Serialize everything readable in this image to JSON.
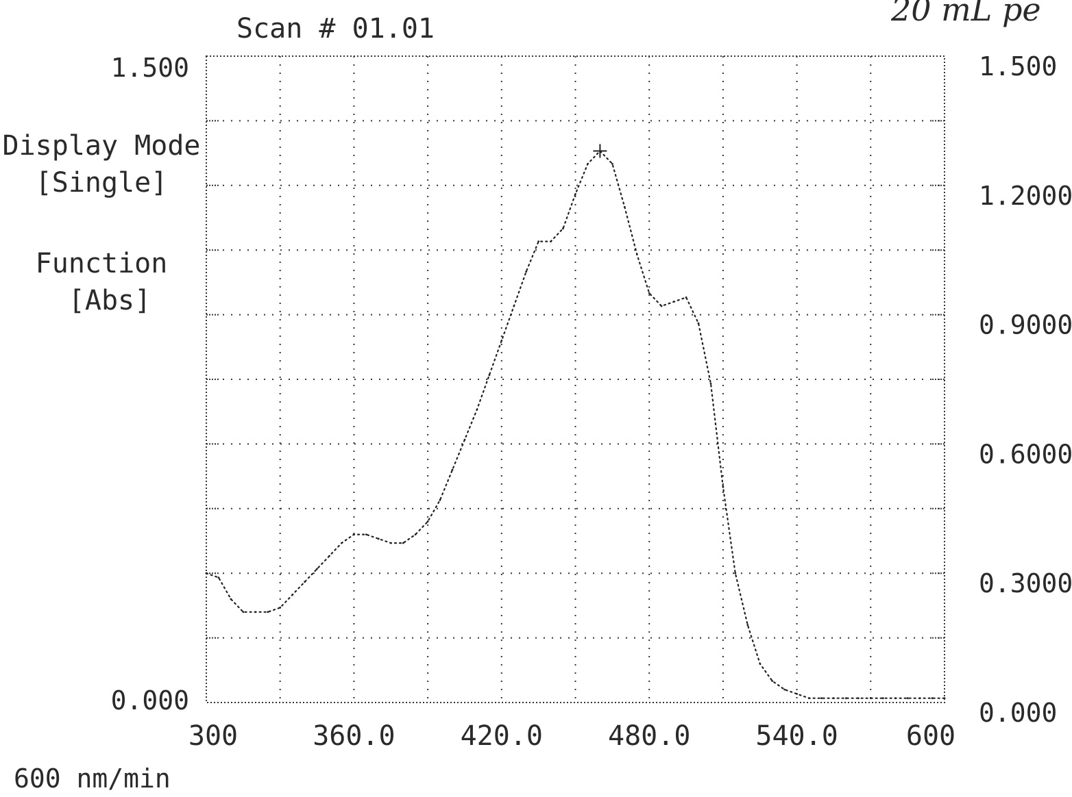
{
  "header": {
    "scan_label": "Scan #  01.01"
  },
  "handwritten_note": "20 mL pe",
  "side_panel": {
    "display_mode_label": "Display Mode",
    "display_mode_value": "[Single]",
    "function_label": "Function",
    "function_value": "[Abs]"
  },
  "left_axis": {
    "top_label": "1.500",
    "bottom_label": "0.000"
  },
  "right_axis": {
    "tick_labels": [
      "1.500",
      "1.2000",
      "0.9000",
      "0.6000",
      "0.3000",
      "0.000"
    ]
  },
  "x_axis": {
    "tick_labels": [
      "300",
      "360.0",
      "420.0",
      "480.0",
      "540.0",
      "600"
    ]
  },
  "footer": {
    "scan_speed": "600 nm/min"
  },
  "chart_data": {
    "type": "line",
    "title": "",
    "xlabel": "",
    "ylabel": "",
    "xlim": [
      300,
      600
    ],
    "ylim": [
      0,
      1.5
    ],
    "grid": true,
    "line_style": "dotted",
    "series": [
      {
        "x": [
          300,
          305,
          310,
          315,
          320,
          325,
          330,
          335,
          340,
          345,
          350,
          355,
          360,
          365,
          370,
          375,
          380,
          385,
          390,
          395,
          400,
          405,
          410,
          415,
          420,
          425,
          430,
          435,
          440,
          445,
          450,
          455,
          460,
          465,
          470,
          475,
          480,
          485,
          490,
          495,
          500,
          505,
          510,
          515,
          520,
          525,
          530,
          535,
          540,
          545,
          550,
          555,
          560,
          565,
          570,
          575,
          580,
          585,
          590,
          595,
          600
        ],
        "y": [
          0.3,
          0.29,
          0.24,
          0.21,
          0.21,
          0.21,
          0.22,
          0.25,
          0.28,
          0.31,
          0.34,
          0.37,
          0.39,
          0.39,
          0.38,
          0.37,
          0.37,
          0.39,
          0.42,
          0.47,
          0.54,
          0.61,
          0.68,
          0.76,
          0.84,
          0.92,
          1.0,
          1.07,
          1.07,
          1.1,
          1.18,
          1.25,
          1.28,
          1.25,
          1.15,
          1.04,
          0.95,
          0.92,
          0.93,
          0.94,
          0.88,
          0.74,
          0.5,
          0.3,
          0.18,
          0.09,
          0.05,
          0.03,
          0.02,
          0.01,
          0.01,
          0.01,
          0.01,
          0.01,
          0.01,
          0.01,
          0.01,
          0.01,
          0.01,
          0.01,
          0.01
        ]
      }
    ]
  }
}
